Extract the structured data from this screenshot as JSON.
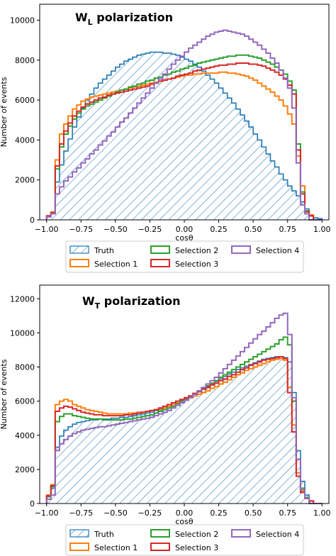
{
  "colors": {
    "truth": "#1f77b4",
    "selection_1": "#ff7f0e",
    "selection_2": "#2ca02c",
    "selection_3": "#d62728",
    "selection_4": "#9467bd"
  },
  "chart_data": [
    {
      "type": "histogram",
      "title": {
        "main": "W",
        "sub": "L",
        "rest": " polarization"
      },
      "xlabel": "cosθ",
      "ylabel": "Number of events",
      "xlim": [
        -1.05,
        1.05
      ],
      "ylim": [
        0,
        10800
      ],
      "xticks": [
        -1.0,
        -0.75,
        -0.5,
        -0.25,
        0.0,
        0.25,
        0.5,
        0.75,
        1.0
      ],
      "xtick_labels": [
        "−1.00",
        "−0.75",
        "−0.50",
        "−0.25",
        "0.00",
        "0.25",
        "0.50",
        "0.75",
        "1.00"
      ],
      "yticks": [
        0,
        2000,
        4000,
        6000,
        8000,
        10000
      ],
      "ytick_labels": [
        "0",
        "2000",
        "4000",
        "6000",
        "8000",
        "10000"
      ],
      "grid": false,
      "legend_position": "bottom",
      "bin_edges_range": [
        -1.0,
        1.0
      ],
      "bins": 64,
      "series": [
        {
          "name": "Truth",
          "style": "hatched",
          "values": [
            150,
            350,
            1900,
            2750,
            3450,
            4050,
            4650,
            5150,
            5600,
            6000,
            6300,
            6600,
            6850,
            7050,
            7250,
            7450,
            7650,
            7800,
            7950,
            8050,
            8150,
            8250,
            8300,
            8350,
            8400,
            8400,
            8400,
            8350,
            8350,
            8300,
            8250,
            8150,
            8050,
            7950,
            7800,
            7650,
            7450,
            7250,
            7050,
            6850,
            6600,
            6350,
            6100,
            5850,
            5550,
            5250,
            4950,
            4650,
            4300,
            4000,
            3650,
            3300,
            2950,
            2650,
            2300,
            2000,
            1700,
            1450,
            1200,
            900,
            550,
            250,
            100,
            60
          ]
        },
        {
          "name": "Selection 1",
          "values": [
            200,
            400,
            3000,
            4300,
            4800,
            5200,
            5550,
            5750,
            5950,
            6050,
            6150,
            6200,
            6250,
            6300,
            6350,
            6400,
            6450,
            6500,
            6550,
            6600,
            6650,
            6700,
            6750,
            6800,
            6850,
            6900,
            6950,
            7000,
            7050,
            7100,
            7150,
            7200,
            7250,
            7250,
            7300,
            7300,
            7350,
            7350,
            7350,
            7350,
            7400,
            7400,
            7350,
            7350,
            7300,
            7250,
            7200,
            7100,
            7000,
            6850,
            6700,
            6550,
            6400,
            6200,
            6000,
            5700,
            5300,
            4800,
            3200,
            1700,
            450,
            250,
            0,
            0
          ]
        },
        {
          "name": "Selection 2",
          "values": [
            200,
            350,
            2550,
            3650,
            4300,
            4700,
            5050,
            5350,
            5550,
            5700,
            5800,
            5900,
            6000,
            6100,
            6200,
            6300,
            6400,
            6500,
            6550,
            6650,
            6700,
            6800,
            6850,
            6950,
            7000,
            7100,
            7150,
            7250,
            7300,
            7400,
            7450,
            7550,
            7600,
            7700,
            7750,
            7850,
            7900,
            7950,
            8000,
            8050,
            8100,
            8150,
            8200,
            8200,
            8250,
            8250,
            8250,
            8200,
            8150,
            8100,
            8000,
            7900,
            7800,
            7650,
            7500,
            7300,
            6950,
            6500,
            3800,
            1400,
            450,
            200,
            0,
            0
          ]
        },
        {
          "name": "Selection 3",
          "values": [
            200,
            350,
            2700,
            3800,
            4450,
            4850,
            5200,
            5450,
            5650,
            5800,
            5900,
            6000,
            6100,
            6150,
            6250,
            6300,
            6350,
            6400,
            6450,
            6500,
            6550,
            6600,
            6650,
            6700,
            6800,
            6850,
            6950,
            7000,
            7050,
            7100,
            7200,
            7250,
            7300,
            7350,
            7450,
            7500,
            7550,
            7600,
            7650,
            7700,
            7750,
            7750,
            7800,
            7800,
            7850,
            7850,
            7850,
            7800,
            7800,
            7750,
            7700,
            7600,
            7500,
            7400,
            7250,
            7050,
            6750,
            6300,
            3500,
            1300,
            400,
            200,
            0,
            0
          ]
        },
        {
          "name": "Selection 4",
          "values": [
            150,
            300,
            1300,
            1650,
            1950,
            2150,
            2400,
            2600,
            2850,
            3050,
            3300,
            3500,
            3750,
            3950,
            4200,
            4400,
            4650,
            4900,
            5100,
            5350,
            5600,
            5850,
            6100,
            6350,
            6600,
            6850,
            7050,
            7300,
            7550,
            7800,
            8000,
            8200,
            8400,
            8600,
            8750,
            8900,
            9050,
            9200,
            9300,
            9400,
            9450,
            9500,
            9450,
            9400,
            9350,
            9300,
            9200,
            9050,
            8900,
            8750,
            8550,
            8350,
            8100,
            7850,
            7500,
            7100,
            6600,
            5600,
            2850,
            750,
            300,
            0,
            0,
            0
          ]
        }
      ]
    },
    {
      "type": "histogram",
      "title": {
        "main": "W",
        "sub": "T",
        "rest": " polarization"
      },
      "xlabel": "cosθ",
      "ylabel": "Number of events",
      "xlim": [
        -1.05,
        1.05
      ],
      "ylim": [
        0,
        12800
      ],
      "xticks": [
        -1.0,
        -0.75,
        -0.5,
        -0.25,
        0.0,
        0.25,
        0.5,
        0.75,
        1.0
      ],
      "xtick_labels": [
        "−1.00",
        "−0.75",
        "−0.50",
        "−0.25",
        "0.00",
        "0.25",
        "0.50",
        "0.75",
        "1.00"
      ],
      "yticks": [
        0,
        2000,
        4000,
        6000,
        8000,
        10000,
        12000
      ],
      "ytick_labels": [
        "0",
        "2000",
        "4000",
        "6000",
        "8000",
        "10000",
        "12000"
      ],
      "grid": false,
      "legend_position": "bottom",
      "bin_edges_range": [
        -1.0,
        1.0
      ],
      "bins": 64,
      "series": [
        {
          "name": "Truth",
          "style": "hatched",
          "values": [
            400,
            900,
            3300,
            3950,
            4300,
            4500,
            4650,
            4750,
            4800,
            4850,
            4900,
            4900,
            4950,
            4950,
            4950,
            5000,
            5000,
            5050,
            5050,
            5100,
            5150,
            5200,
            5250,
            5300,
            5350,
            5450,
            5500,
            5600,
            5700,
            5800,
            5900,
            6050,
            6150,
            6300,
            6400,
            6550,
            6700,
            6850,
            7000,
            7150,
            7300,
            7450,
            7600,
            7700,
            7850,
            7950,
            8050,
            8150,
            8250,
            8350,
            8450,
            8500,
            8550,
            8600,
            8600,
            8550,
            8300,
            6500,
            3100,
            1300,
            500,
            150,
            0,
            0
          ]
        },
        {
          "name": "Selection 1",
          "values": [
            500,
            1100,
            5800,
            6000,
            6100,
            6000,
            5800,
            5700,
            5600,
            5500,
            5450,
            5400,
            5350,
            5300,
            5250,
            5250,
            5250,
            5250,
            5250,
            5300,
            5300,
            5350,
            5350,
            5400,
            5450,
            5500,
            5550,
            5600,
            5700,
            5800,
            5900,
            6000,
            6100,
            6200,
            6300,
            6400,
            6500,
            6600,
            6750,
            6850,
            7000,
            7100,
            7250,
            7400,
            7550,
            7650,
            7800,
            7900,
            8000,
            8100,
            8200,
            8300,
            8400,
            8450,
            8500,
            8400,
            6800,
            4600,
            1800,
            700,
            300,
            150,
            0,
            0
          ]
        },
        {
          "name": "Selection 2",
          "values": [
            400,
            1000,
            4800,
            5100,
            5250,
            5250,
            5150,
            5100,
            5050,
            5000,
            4950,
            4950,
            4950,
            4900,
            4900,
            4900,
            4900,
            4900,
            4950,
            4950,
            5000,
            5050,
            5100,
            5150,
            5200,
            5300,
            5400,
            5500,
            5600,
            5700,
            5850,
            6000,
            6150,
            6300,
            6450,
            6600,
            6750,
            6900,
            7050,
            7200,
            7400,
            7550,
            7700,
            7850,
            8000,
            8150,
            8300,
            8450,
            8600,
            8750,
            8900,
            9050,
            9200,
            9350,
            9600,
            9750,
            9300,
            6000,
            2600,
            900,
            350,
            150,
            0,
            0
          ]
        },
        {
          "name": "Selection 3",
          "values": [
            450,
            1050,
            5400,
            5600,
            5700,
            5650,
            5550,
            5450,
            5350,
            5300,
            5250,
            5200,
            5200,
            5150,
            5150,
            5150,
            5150,
            5150,
            5200,
            5200,
            5250,
            5300,
            5350,
            5400,
            5450,
            5500,
            5600,
            5700,
            5800,
            5900,
            6000,
            6100,
            6200,
            6300,
            6450,
            6550,
            6700,
            6800,
            6950,
            7050,
            7200,
            7300,
            7450,
            7550,
            7700,
            7850,
            7950,
            8100,
            8200,
            8300,
            8400,
            8450,
            8500,
            8550,
            8600,
            8500,
            6500,
            4200,
            1600,
            650,
            300,
            150,
            0,
            0
          ]
        },
        {
          "name": "Selection 4",
          "values": [
            250,
            500,
            3100,
            3500,
            3750,
            3950,
            4100,
            4200,
            4300,
            4350,
            4400,
            4450,
            4500,
            4500,
            4550,
            4600,
            4650,
            4700,
            4750,
            4800,
            4850,
            4900,
            4950,
            5000,
            5050,
            5150,
            5250,
            5350,
            5450,
            5600,
            5750,
            5900,
            6050,
            6200,
            6400,
            6600,
            6800,
            7000,
            7200,
            7400,
            7650,
            7900,
            8150,
            8400,
            8650,
            8900,
            9150,
            9400,
            9650,
            9900,
            10100,
            10350,
            10600,
            10850,
            11050,
            11150,
            9900,
            6200,
            2600,
            800,
            300,
            0,
            0,
            0
          ]
        }
      ]
    }
  ]
}
